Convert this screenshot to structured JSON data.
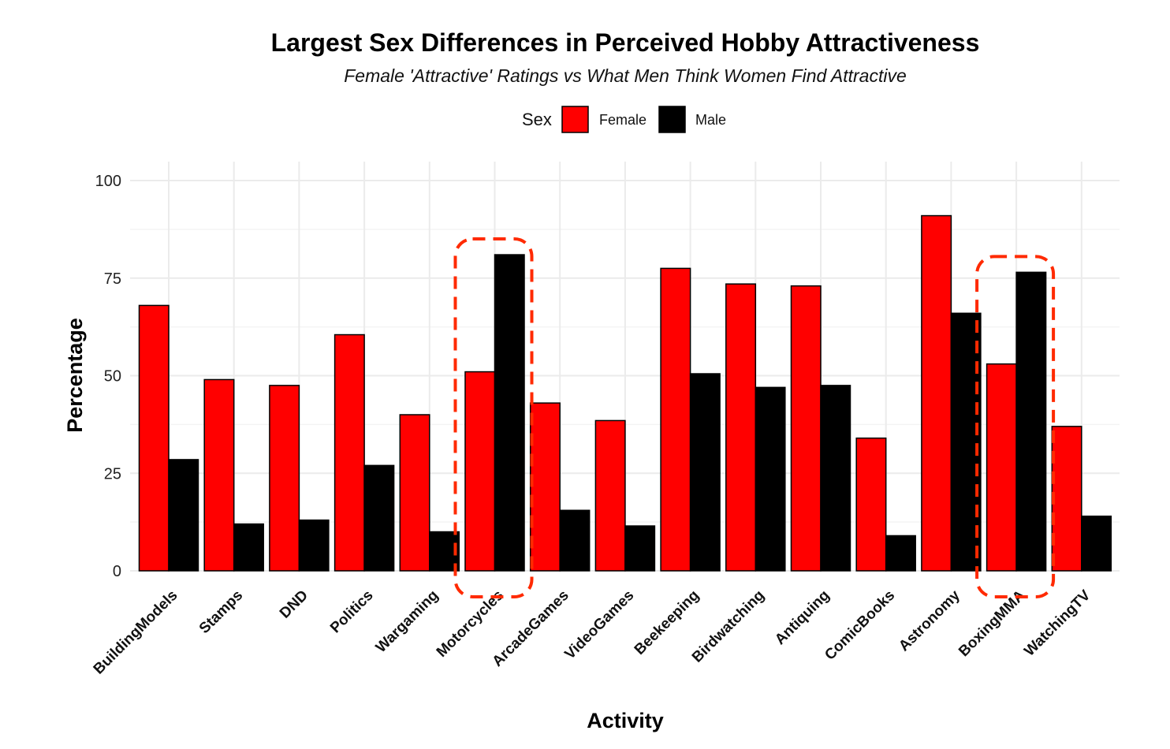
{
  "chart_data": {
    "type": "bar",
    "title": "Largest Sex Differences in Perceived Hobby Attractiveness",
    "subtitle": "Female 'Attractive' Ratings vs What Men Think Women Find Attractive",
    "xlabel": "Activity",
    "ylabel": "Percentage",
    "ylim": [
      0,
      100
    ],
    "yticks": [
      0,
      25,
      50,
      75,
      100
    ],
    "legend": {
      "title": "Sex",
      "position": "top"
    },
    "categories": [
      "BuildingModels",
      "Stamps",
      "DND",
      "Politics",
      "Wargaming",
      "Motorcycles",
      "ArcadeGames",
      "VideoGames",
      "Beekeeping",
      "Birdwatching",
      "Antiquing",
      "ComicBooks",
      "Astronomy",
      "BoxingMMA",
      "WatchingTV"
    ],
    "series": [
      {
        "name": "Female",
        "color": "#ff0000",
        "values": [
          68,
          49,
          47.5,
          60.5,
          40,
          51,
          43,
          38.5,
          77.5,
          73.5,
          73,
          34,
          91,
          53,
          37
        ]
      },
      {
        "name": "Male",
        "color": "#000000",
        "values": [
          28.5,
          12,
          13,
          27,
          10,
          81,
          15.5,
          11.5,
          50.5,
          47,
          47.5,
          9,
          66,
          76.5,
          14
        ]
      }
    ],
    "highlighted_categories": [
      "Motorcycles",
      "BoxingMMA"
    ]
  }
}
